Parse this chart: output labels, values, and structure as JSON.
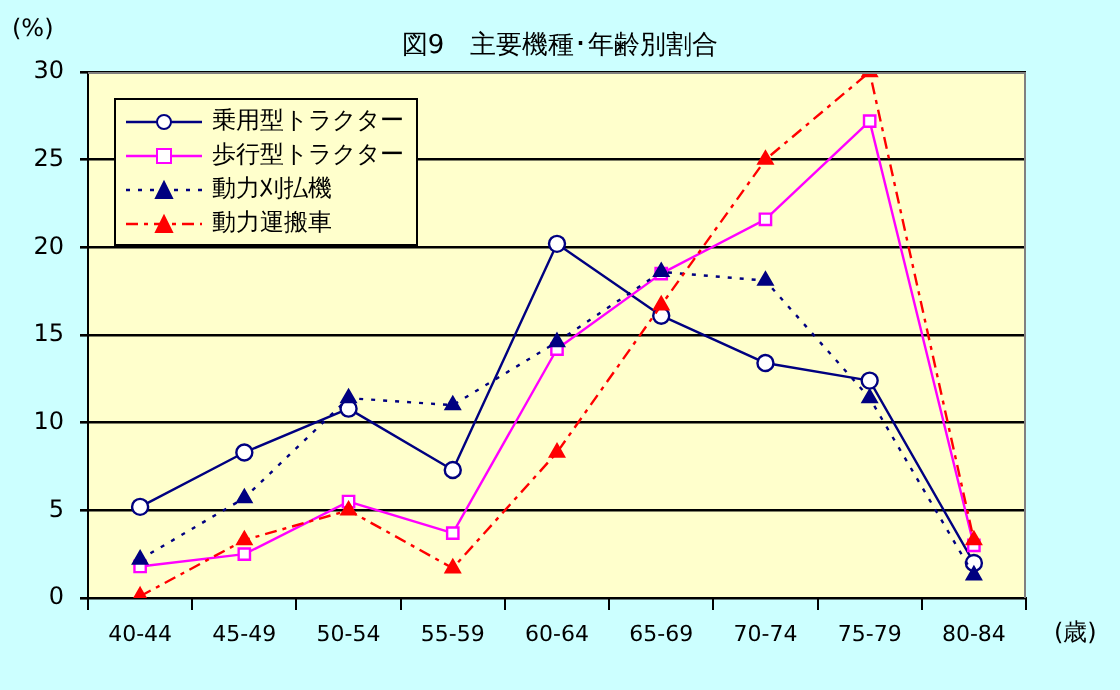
{
  "chart_data": {
    "type": "line",
    "title": "図9　主要機種･年齢別割合",
    "ylabel": "(%)",
    "xlabel": "(歳)",
    "categories": [
      "40-44",
      "45-49",
      "50-54",
      "55-59",
      "60-64",
      "65-69",
      "70-74",
      "75-79",
      "80-84"
    ],
    "ylim": [
      0,
      30
    ],
    "yticks": [
      0,
      5,
      10,
      15,
      20,
      25,
      30
    ],
    "grid": "y",
    "legend": "top left",
    "series": [
      {
        "name": "乗用型トラクター",
        "color": "#000080",
        "marker": "circle",
        "line_style": "solid",
        "values": [
          5.2,
          8.3,
          10.8,
          7.3,
          20.2,
          16.1,
          13.4,
          12.4,
          2.0
        ]
      },
      {
        "name": "歩行型トラクター",
        "color": "#ff00ff",
        "marker": "square",
        "line_style": "solid",
        "values": [
          1.8,
          2.5,
          5.5,
          3.7,
          14.2,
          18.5,
          21.6,
          27.2,
          3.0
        ]
      },
      {
        "name": "動力刈払機",
        "color": "#000080",
        "marker": "triangle",
        "line_style": "dotted",
        "values": [
          2.2,
          5.7,
          11.4,
          11.0,
          14.6,
          18.6,
          18.1,
          11.4,
          1.3
        ]
      },
      {
        "name": "動力運搬車",
        "color": "#ff0000",
        "marker": "triangle",
        "line_style": "dashed",
        "values": [
          0.1,
          3.3,
          5.0,
          1.7,
          8.3,
          16.7,
          25.0,
          30.0,
          3.3
        ]
      }
    ]
  }
}
